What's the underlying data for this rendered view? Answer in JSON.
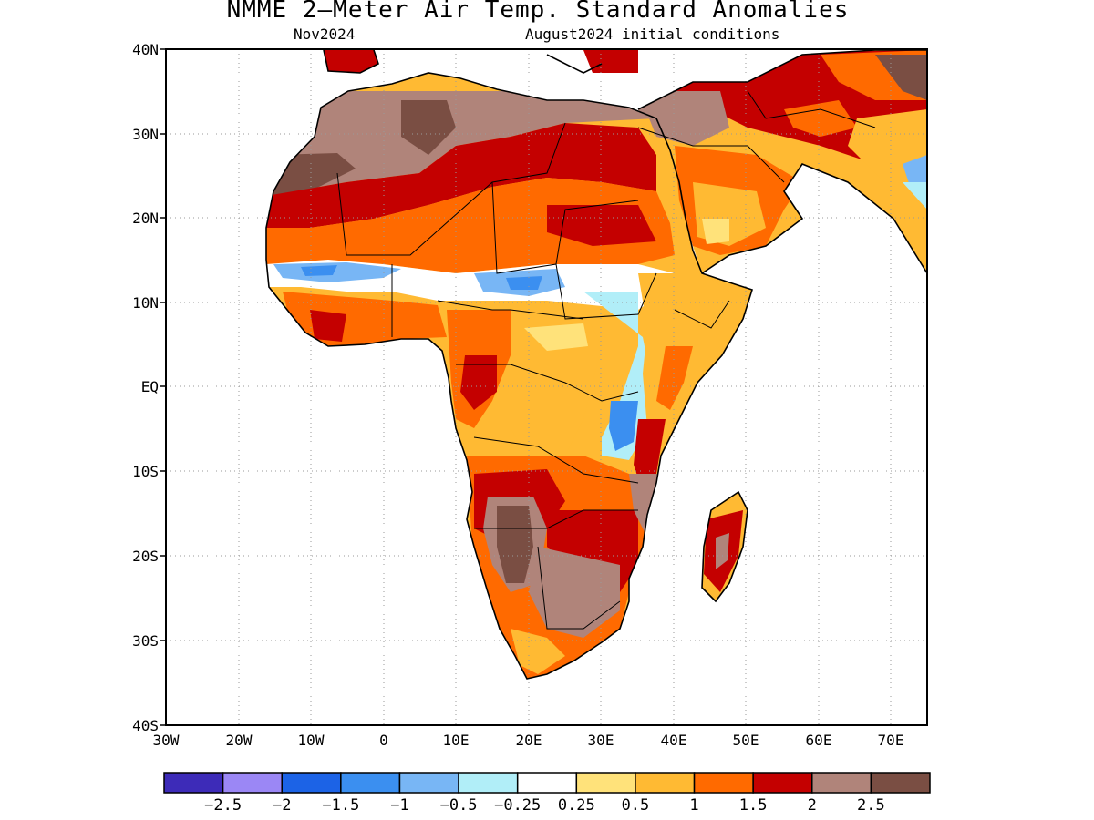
{
  "header": {
    "title": "NMME 2—Meter Air Temp. Standard Anomalies",
    "target_month": "Nov2024",
    "init": "August2024 initial conditions"
  },
  "axes": {
    "lat_labels": [
      "40N",
      "30N",
      "20N",
      "10N",
      "EQ",
      "10S",
      "20S",
      "30S",
      "40S"
    ],
    "lon_labels": [
      "30W",
      "20W",
      "10W",
      "0",
      "10E",
      "20E",
      "30E",
      "40E",
      "50E",
      "60E",
      "70E"
    ],
    "lat_range": [
      -40,
      40
    ],
    "lon_range": [
      -30,
      75
    ]
  },
  "legend": {
    "colors": [
      "#3d2bb8",
      "#9b87f5",
      "#1c63e6",
      "#3b8ff0",
      "#78b6f5",
      "#b1eef8",
      "#ffffff",
      "#ffe27a",
      "#ffba33",
      "#ff6a00",
      "#c40000",
      "#b0847a",
      "#7a4e43"
    ],
    "labels": [
      "−2.5",
      "−2",
      "−1.5",
      "−1",
      "−0.5",
      "−0.25",
      "0.25",
      "0.5",
      "1",
      "1.5",
      "2",
      "2.5"
    ]
  }
}
